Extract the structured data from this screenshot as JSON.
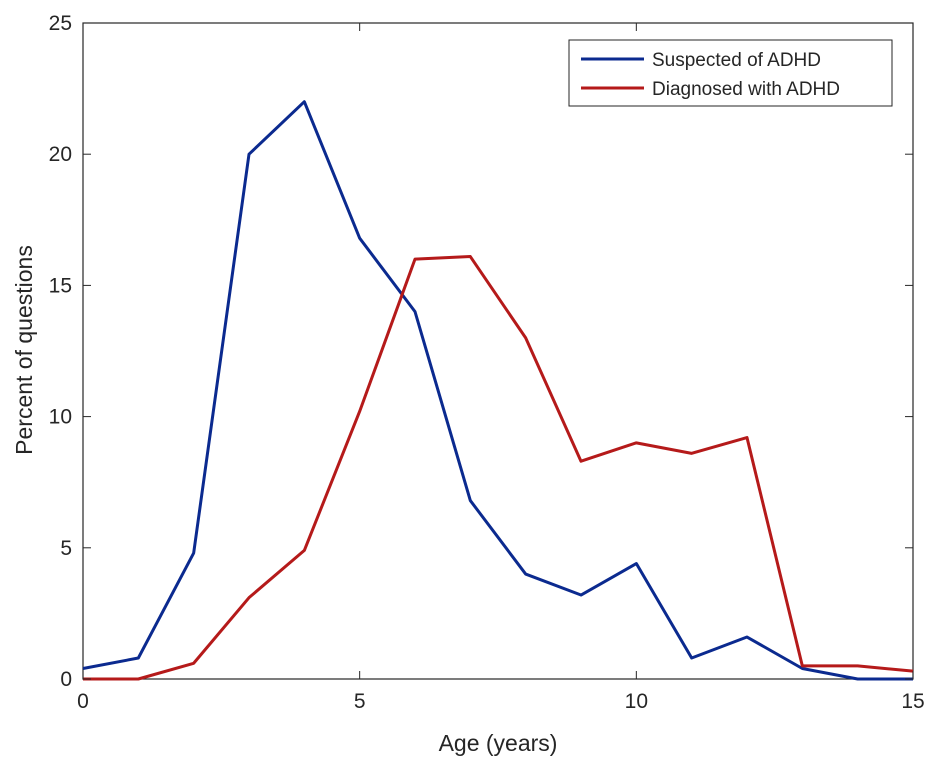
{
  "chart_data": {
    "type": "line",
    "xlabel": "Age (years)",
    "ylabel": "Percent of questions",
    "xlim": [
      0,
      15
    ],
    "ylim": [
      0,
      25
    ],
    "xticks": [
      0,
      5,
      10,
      15
    ],
    "yticks": [
      0,
      5,
      10,
      15,
      20,
      25
    ],
    "grid": false,
    "legend_position": "top-right",
    "x": [
      0,
      1,
      2,
      3,
      4,
      5,
      6,
      7,
      8,
      9,
      10,
      11,
      12,
      13,
      14,
      15
    ],
    "series": [
      {
        "name": "Suspected of ADHD",
        "color": "#0b2a8f",
        "values": [
          0.4,
          0.8,
          4.8,
          20.0,
          22.0,
          16.8,
          14.0,
          6.8,
          4.0,
          3.2,
          4.4,
          0.8,
          1.6,
          0.4,
          0.0,
          0.0
        ]
      },
      {
        "name": "Diagnosed with ADHD",
        "color": "#b51a1a",
        "values": [
          0.0,
          0.0,
          0.6,
          3.1,
          4.9,
          10.2,
          16.0,
          16.1,
          13.0,
          8.3,
          9.0,
          8.6,
          9.2,
          0.5,
          0.5,
          0.3
        ]
      }
    ]
  }
}
